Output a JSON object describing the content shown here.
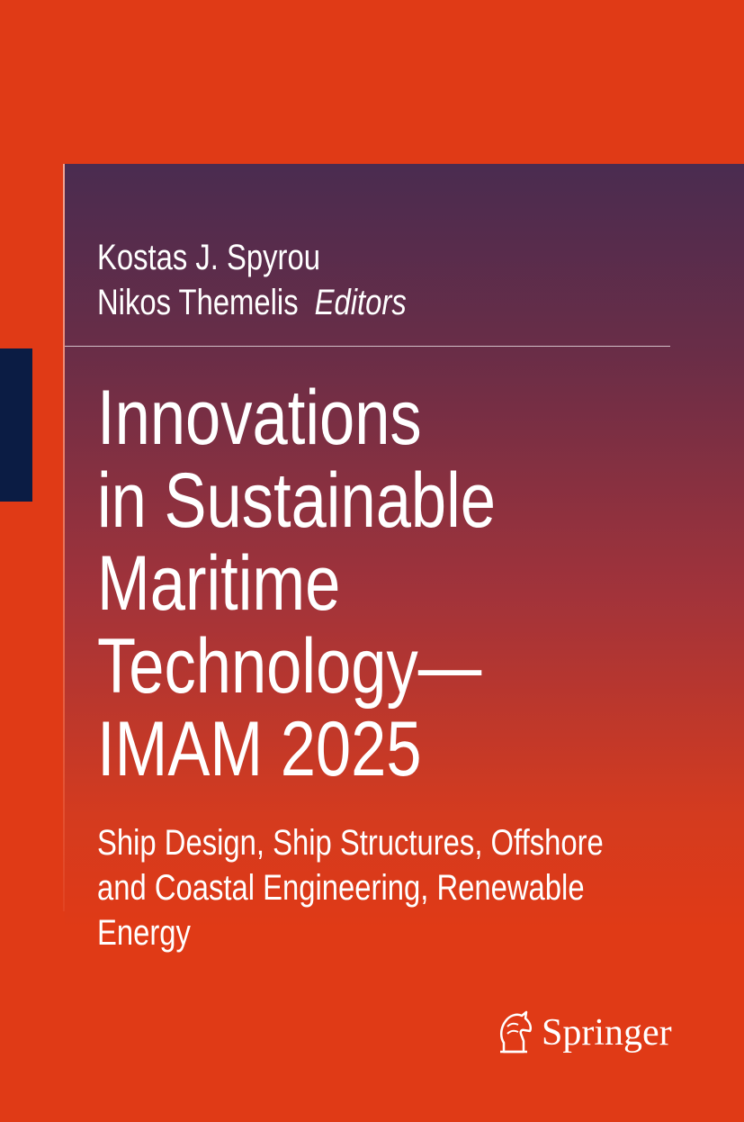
{
  "authors": [
    "Kostas J. Spyrou",
    "Nikos Themelis"
  ],
  "role": "Editors",
  "title": [
    "Innovations",
    "in Sustainable",
    "Maritime",
    "Technology—",
    "IMAM 2025"
  ],
  "subtitle": [
    "Ship Design, Ship Structures, Offshore",
    "and Coastal Engineering, Renewable",
    "Energy"
  ],
  "publisher": "Springer"
}
